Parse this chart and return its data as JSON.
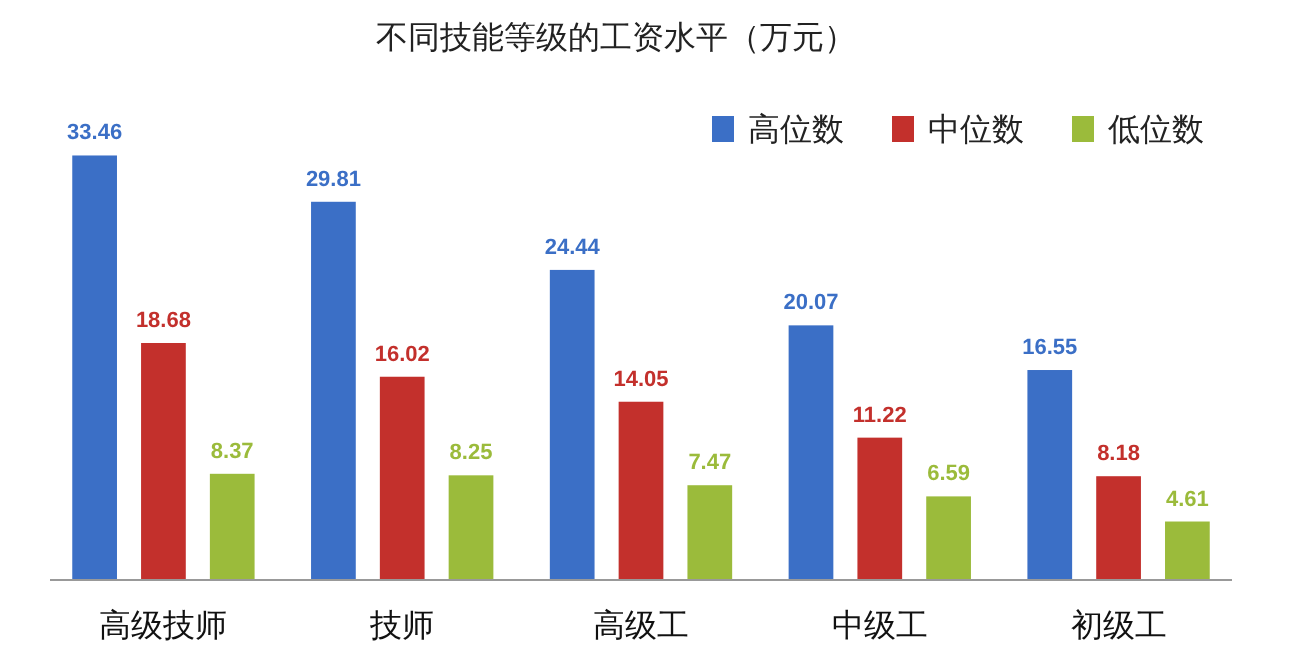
{
  "chart_data": {
    "type": "bar",
    "title": "不同技能等级的工资水平（万元）",
    "categories": [
      "高级技师",
      "技师",
      "高级工",
      "中级工",
      "初级工"
    ],
    "series": [
      {
        "name": "高位数",
        "color": "#3b6fc6",
        "values": [
          33.46,
          29.81,
          24.44,
          20.07,
          16.55
        ]
      },
      {
        "name": "中位数",
        "color": "#c3302c",
        "values": [
          18.68,
          16.02,
          14.05,
          11.22,
          8.18
        ]
      },
      {
        "name": "低位数",
        "color": "#9bbb3b",
        "values": [
          8.37,
          8.25,
          7.47,
          6.59,
          4.61
        ]
      }
    ],
    "data_labels": true,
    "legend": "top right",
    "grid": false
  }
}
